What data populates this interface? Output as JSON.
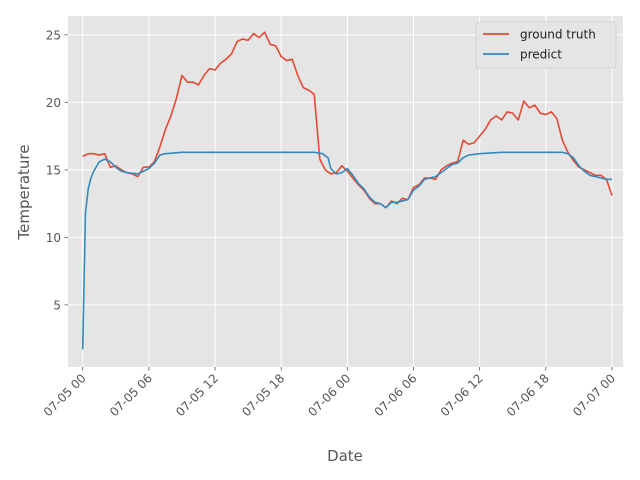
{
  "chart_data": {
    "type": "line",
    "xlabel": "Date",
    "ylabel": "Temperature",
    "xlim": [
      "2023-07-04 22:40",
      "2023-07-07 01:00"
    ],
    "ylim": [
      0.4,
      26.4
    ],
    "grid": true,
    "legend": "top-right",
    "style": "ggplot",
    "x_ticks": [
      {
        "x": "2023-07-05 00:00",
        "label": "07-05 00"
      },
      {
        "x": "2023-07-05 06:00",
        "label": "07-05 06"
      },
      {
        "x": "2023-07-05 12:00",
        "label": "07-05 12"
      },
      {
        "x": "2023-07-05 18:00",
        "label": "07-05 18"
      },
      {
        "x": "2023-07-06 00:00",
        "label": "07-06 00"
      },
      {
        "x": "2023-07-06 06:00",
        "label": "07-06 06"
      },
      {
        "x": "2023-07-06 12:00",
        "label": "07-06 12"
      },
      {
        "x": "2023-07-06 18:00",
        "label": "07-06 18"
      },
      {
        "x": "2023-07-07 00:00",
        "label": "07-07 00"
      }
    ],
    "y_ticks": [
      5,
      10,
      15,
      20,
      25
    ],
    "series": [
      {
        "name": "ground truth",
        "color": "#E24A33",
        "points": [
          [
            "2023-07-05 00:00",
            16.0
          ],
          [
            "2023-07-05 00:30",
            16.2
          ],
          [
            "2023-07-05 01:00",
            16.2
          ],
          [
            "2023-07-05 01:30",
            16.1
          ],
          [
            "2023-07-05 02:00",
            16.2
          ],
          [
            "2023-07-05 02:30",
            15.2
          ],
          [
            "2023-07-05 03:00",
            15.3
          ],
          [
            "2023-07-05 03:30",
            15.0
          ],
          [
            "2023-07-05 04:00",
            14.8
          ],
          [
            "2023-07-05 04:30",
            14.7
          ],
          [
            "2023-07-05 05:00",
            14.5
          ],
          [
            "2023-07-05 05:30",
            15.2
          ],
          [
            "2023-07-05 06:00",
            15.2
          ],
          [
            "2023-07-05 06:30",
            15.6
          ],
          [
            "2023-07-05 07:00",
            16.7
          ],
          [
            "2023-07-05 07:30",
            18.0
          ],
          [
            "2023-07-05 08:00",
            19.0
          ],
          [
            "2023-07-05 08:30",
            20.3
          ],
          [
            "2023-07-05 09:00",
            22.0
          ],
          [
            "2023-07-05 09:30",
            21.5
          ],
          [
            "2023-07-05 10:00",
            21.5
          ],
          [
            "2023-07-05 10:30",
            21.3
          ],
          [
            "2023-07-05 11:00",
            22.0
          ],
          [
            "2023-07-05 11:30",
            22.5
          ],
          [
            "2023-07-05 12:00",
            22.4
          ],
          [
            "2023-07-05 12:30",
            22.9
          ],
          [
            "2023-07-05 13:00",
            23.2
          ],
          [
            "2023-07-05 13:30",
            23.6
          ],
          [
            "2023-07-05 14:00",
            24.5
          ],
          [
            "2023-07-05 14:30",
            24.7
          ],
          [
            "2023-07-05 15:00",
            24.6
          ],
          [
            "2023-07-05 15:30",
            25.1
          ],
          [
            "2023-07-05 16:00",
            24.8
          ],
          [
            "2023-07-05 16:30",
            25.2
          ],
          [
            "2023-07-05 17:00",
            24.3
          ],
          [
            "2023-07-05 17:30",
            24.2
          ],
          [
            "2023-07-05 18:00",
            23.4
          ],
          [
            "2023-07-05 18:30",
            23.1
          ],
          [
            "2023-07-05 19:00",
            23.2
          ],
          [
            "2023-07-05 19:30",
            22.0
          ],
          [
            "2023-07-05 20:00",
            21.1
          ],
          [
            "2023-07-05 20:30",
            20.9
          ],
          [
            "2023-07-05 21:00",
            20.6
          ],
          [
            "2023-07-05 21:30",
            15.8
          ],
          [
            "2023-07-05 22:00",
            15.0
          ],
          [
            "2023-07-05 22:30",
            14.7
          ],
          [
            "2023-07-05 23:00",
            14.8
          ],
          [
            "2023-07-05 23:30",
            15.3
          ],
          [
            "2023-07-06 00:00",
            14.9
          ],
          [
            "2023-07-06 00:30",
            14.4
          ],
          [
            "2023-07-06 01:00",
            13.9
          ],
          [
            "2023-07-06 01:30",
            13.5
          ],
          [
            "2023-07-06 02:00",
            12.9
          ],
          [
            "2023-07-06 02:30",
            12.5
          ],
          [
            "2023-07-06 03:00",
            12.5
          ],
          [
            "2023-07-06 03:30",
            12.2
          ],
          [
            "2023-07-06 04:00",
            12.7
          ],
          [
            "2023-07-06 04:30",
            12.5
          ],
          [
            "2023-07-06 05:00",
            12.9
          ],
          [
            "2023-07-06 05:30",
            12.8
          ],
          [
            "2023-07-06 06:00",
            13.7
          ],
          [
            "2023-07-06 06:30",
            13.9
          ],
          [
            "2023-07-06 07:00",
            14.4
          ],
          [
            "2023-07-06 07:30",
            14.4
          ],
          [
            "2023-07-06 08:00",
            14.3
          ],
          [
            "2023-07-06 08:30",
            15.0
          ],
          [
            "2023-07-06 09:00",
            15.3
          ],
          [
            "2023-07-06 09:30",
            15.5
          ],
          [
            "2023-07-06 10:00",
            15.6
          ],
          [
            "2023-07-06 10:30",
            17.2
          ],
          [
            "2023-07-06 11:00",
            16.9
          ],
          [
            "2023-07-06 11:30",
            17.0
          ],
          [
            "2023-07-06 12:00",
            17.5
          ],
          [
            "2023-07-06 12:30",
            18.0
          ],
          [
            "2023-07-06 13:00",
            18.7
          ],
          [
            "2023-07-06 13:30",
            19.0
          ],
          [
            "2023-07-06 14:00",
            18.7
          ],
          [
            "2023-07-06 14:30",
            19.3
          ],
          [
            "2023-07-06 15:00",
            19.2
          ],
          [
            "2023-07-06 15:30",
            18.7
          ],
          [
            "2023-07-06 16:00",
            20.1
          ],
          [
            "2023-07-06 16:30",
            19.6
          ],
          [
            "2023-07-06 17:00",
            19.8
          ],
          [
            "2023-07-06 17:30",
            19.2
          ],
          [
            "2023-07-06 18:00",
            19.1
          ],
          [
            "2023-07-06 18:30",
            19.3
          ],
          [
            "2023-07-06 19:00",
            18.8
          ],
          [
            "2023-07-06 19:30",
            17.2
          ],
          [
            "2023-07-06 20:00",
            16.3
          ],
          [
            "2023-07-06 20:30",
            15.7
          ],
          [
            "2023-07-06 21:00",
            15.2
          ],
          [
            "2023-07-06 21:30",
            15.0
          ],
          [
            "2023-07-06 22:00",
            14.8
          ],
          [
            "2023-07-06 22:30",
            14.6
          ],
          [
            "2023-07-06 23:00",
            14.6
          ],
          [
            "2023-07-06 23:30",
            14.3
          ],
          [
            "2023-07-07 00:00",
            13.1
          ]
        ]
      },
      {
        "name": "predict",
        "color": "#348ABD",
        "points": [
          [
            "2023-07-05 00:00",
            1.7
          ],
          [
            "2023-07-05 00:15",
            11.8
          ],
          [
            "2023-07-05 00:30",
            13.6
          ],
          [
            "2023-07-05 00:45",
            14.4
          ],
          [
            "2023-07-05 01:00",
            14.9
          ],
          [
            "2023-07-05 01:30",
            15.6
          ],
          [
            "2023-07-05 02:00",
            15.8
          ],
          [
            "2023-07-05 02:30",
            15.6
          ],
          [
            "2023-07-05 03:00",
            15.2
          ],
          [
            "2023-07-05 03:30",
            14.9
          ],
          [
            "2023-07-05 04:00",
            14.8
          ],
          [
            "2023-07-05 05:00",
            14.7
          ],
          [
            "2023-07-05 05:30",
            14.9
          ],
          [
            "2023-07-05 06:00",
            15.1
          ],
          [
            "2023-07-05 06:30",
            15.5
          ],
          [
            "2023-07-05 07:00",
            16.1
          ],
          [
            "2023-07-05 07:30",
            16.2
          ],
          [
            "2023-07-05 09:00",
            16.3
          ],
          [
            "2023-07-05 12:00",
            16.3
          ],
          [
            "2023-07-05 15:00",
            16.3
          ],
          [
            "2023-07-05 18:00",
            16.3
          ],
          [
            "2023-07-05 21:00",
            16.3
          ],
          [
            "2023-07-05 21:45",
            16.2
          ],
          [
            "2023-07-05 22:15",
            15.9
          ],
          [
            "2023-07-05 22:30",
            15.1
          ],
          [
            "2023-07-05 23:00",
            14.7
          ],
          [
            "2023-07-05 23:30",
            14.8
          ],
          [
            "2023-07-06 00:00",
            15.1
          ],
          [
            "2023-07-06 00:30",
            14.6
          ],
          [
            "2023-07-06 01:00",
            14.0
          ],
          [
            "2023-07-06 01:30",
            13.6
          ],
          [
            "2023-07-06 02:00",
            13.0
          ],
          [
            "2023-07-06 02:30",
            12.6
          ],
          [
            "2023-07-06 03:00",
            12.5
          ],
          [
            "2023-07-06 03:30",
            12.2
          ],
          [
            "2023-07-06 04:00",
            12.6
          ],
          [
            "2023-07-06 04:30",
            12.6
          ],
          [
            "2023-07-06 05:00",
            12.7
          ],
          [
            "2023-07-06 05:30",
            12.8
          ],
          [
            "2023-07-06 06:00",
            13.5
          ],
          [
            "2023-07-06 06:30",
            13.8
          ],
          [
            "2023-07-06 07:00",
            14.3
          ],
          [
            "2023-07-06 07:30",
            14.4
          ],
          [
            "2023-07-06 08:00",
            14.5
          ],
          [
            "2023-07-06 08:30",
            14.8
          ],
          [
            "2023-07-06 09:00",
            15.1
          ],
          [
            "2023-07-06 09:30",
            15.4
          ],
          [
            "2023-07-06 10:00",
            15.5
          ],
          [
            "2023-07-06 10:30",
            15.9
          ],
          [
            "2023-07-06 11:00",
            16.1
          ],
          [
            "2023-07-06 12:00",
            16.2
          ],
          [
            "2023-07-06 14:00",
            16.3
          ],
          [
            "2023-07-06 17:00",
            16.3
          ],
          [
            "2023-07-06 19:30",
            16.3
          ],
          [
            "2023-07-06 20:00",
            16.2
          ],
          [
            "2023-07-06 20:30",
            15.9
          ],
          [
            "2023-07-06 21:00",
            15.3
          ],
          [
            "2023-07-06 21:30",
            14.9
          ],
          [
            "2023-07-06 22:00",
            14.6
          ],
          [
            "2023-07-06 22:30",
            14.5
          ],
          [
            "2023-07-06 23:00",
            14.4
          ],
          [
            "2023-07-06 23:30",
            14.3
          ],
          [
            "2023-07-07 00:00",
            14.3
          ]
        ]
      }
    ]
  }
}
